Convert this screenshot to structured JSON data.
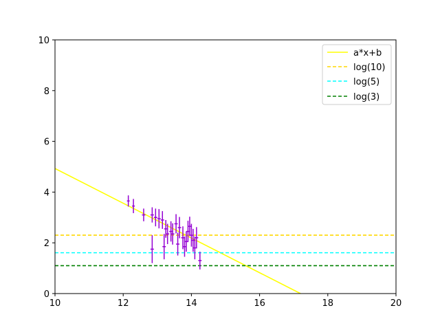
{
  "chart_data": {
    "type": "scatter",
    "title": "",
    "xlabel": "",
    "ylabel": "",
    "xlim": [
      10,
      20
    ],
    "ylim": [
      0,
      10
    ],
    "x_ticks": [
      "10",
      "12",
      "14",
      "16",
      "18",
      "20"
    ],
    "y_ticks": [
      "0",
      "2",
      "4",
      "6",
      "8",
      "10"
    ],
    "grid": false,
    "legend_position": "top-right",
    "fit_line": {
      "name": "a*x+b",
      "color": "#ffff00",
      "x": [
        10,
        17.2
      ],
      "y": [
        4.93,
        0.0
      ]
    },
    "hlines": [
      {
        "name": "log(10)",
        "y": 2.303,
        "color": "#ffd700",
        "style": "dashed"
      },
      {
        "name": "log(5)",
        "y": 1.609,
        "color": "#00ffff",
        "style": "dashed"
      },
      {
        "name": "log(3)",
        "y": 1.099,
        "color": "#008000",
        "style": "dashed"
      }
    ],
    "points_color": "#9400d3",
    "points": [
      {
        "x": 12.15,
        "y": 3.65,
        "xerr": 0.04,
        "yerr": 0.22
      },
      {
        "x": 12.3,
        "y": 3.45,
        "xerr": 0.04,
        "yerr": 0.28
      },
      {
        "x": 12.6,
        "y": 3.1,
        "xerr": 0.05,
        "yerr": 0.25
      },
      {
        "x": 12.85,
        "y": 3.1,
        "xerr": 0.05,
        "yerr": 0.3
      },
      {
        "x": 12.95,
        "y": 3.0,
        "xerr": 0.05,
        "yerr": 0.35
      },
      {
        "x": 13.05,
        "y": 2.95,
        "xerr": 0.05,
        "yerr": 0.38
      },
      {
        "x": 13.15,
        "y": 2.9,
        "xerr": 0.05,
        "yerr": 0.35
      },
      {
        "x": 13.25,
        "y": 2.55,
        "xerr": 0.05,
        "yerr": 0.35
      },
      {
        "x": 13.3,
        "y": 2.35,
        "xerr": 0.05,
        "yerr": 0.4
      },
      {
        "x": 13.45,
        "y": 2.35,
        "xerr": 0.05,
        "yerr": 0.42
      },
      {
        "x": 13.55,
        "y": 2.75,
        "xerr": 0.05,
        "yerr": 0.38
      },
      {
        "x": 13.65,
        "y": 2.6,
        "xerr": 0.05,
        "yerr": 0.42
      },
      {
        "x": 13.75,
        "y": 2.2,
        "xerr": 0.05,
        "yerr": 0.45
      },
      {
        "x": 13.85,
        "y": 2.05,
        "xerr": 0.05,
        "yerr": 0.4
      },
      {
        "x": 13.95,
        "y": 2.65,
        "xerr": 0.05,
        "yerr": 0.38
      },
      {
        "x": 14.0,
        "y": 2.3,
        "xerr": 0.05,
        "yerr": 0.45
      },
      {
        "x": 14.05,
        "y": 2.1,
        "xerr": 0.05,
        "yerr": 0.45
      },
      {
        "x": 14.15,
        "y": 2.2,
        "xerr": 0.05,
        "yerr": 0.42
      },
      {
        "x": 14.25,
        "y": 1.3,
        "xerr": 0.05,
        "yerr": 0.35
      },
      {
        "x": 12.85,
        "y": 1.75,
        "xerr": 0.05,
        "yerr": 0.55
      },
      {
        "x": 13.2,
        "y": 1.85,
        "xerr": 0.05,
        "yerr": 0.5
      },
      {
        "x": 13.4,
        "y": 2.45,
        "xerr": 0.05,
        "yerr": 0.4
      },
      {
        "x": 13.6,
        "y": 1.95,
        "xerr": 0.05,
        "yerr": 0.45
      },
      {
        "x": 13.8,
        "y": 1.85,
        "xerr": 0.05,
        "yerr": 0.4
      },
      {
        "x": 13.9,
        "y": 2.45,
        "xerr": 0.05,
        "yerr": 0.42
      },
      {
        "x": 14.1,
        "y": 1.8,
        "xerr": 0.05,
        "yerr": 0.45
      }
    ]
  }
}
